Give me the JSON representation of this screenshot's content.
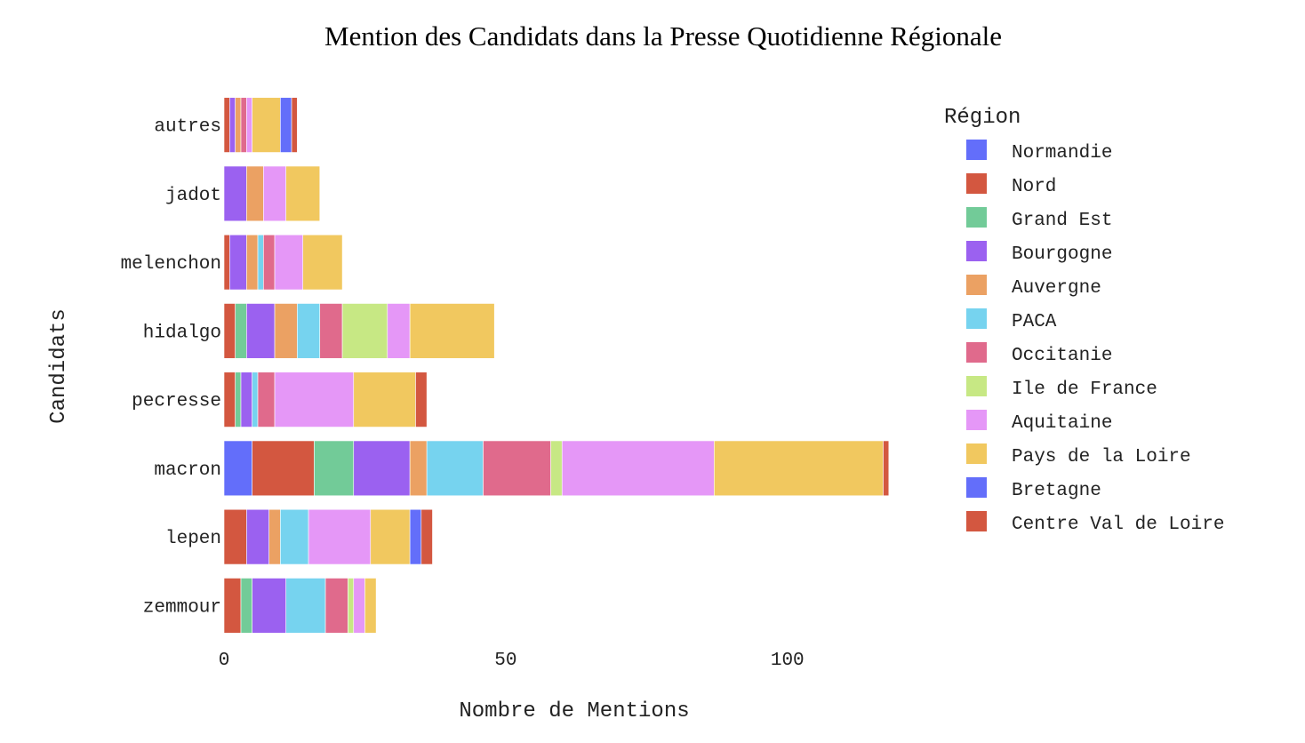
{
  "chart_data": {
    "type": "bar",
    "orientation": "horizontal",
    "stacked": true,
    "title": "Mention des Candidats dans la Presse Quotidienne Régionale",
    "xlabel": "Nombre de Mentions",
    "ylabel": "Candidats",
    "xlim": [
      0,
      118.5
    ],
    "xticks": [
      0,
      50,
      100
    ],
    "grid": false,
    "legend_title": "Région",
    "legend_position": "right",
    "categories": [
      "zemmour",
      "lepen",
      "macron",
      "pecresse",
      "hidalgo",
      "melenchon",
      "jadot",
      "autres"
    ],
    "segments": {
      "autres": [
        {
          "region": "Nord",
          "value": 1
        },
        {
          "region": "Bourgogne",
          "value": 1
        },
        {
          "region": "Auvergne",
          "value": 1
        },
        {
          "region": "Occitanie",
          "value": 1
        },
        {
          "region": "Aquitaine",
          "value": 1
        },
        {
          "region": "Pays de la Loire",
          "value": 5
        },
        {
          "region": "Bretagne",
          "value": 2
        },
        {
          "region": "Centre Val de Loire",
          "value": 1
        }
      ],
      "jadot": [
        {
          "region": "Bourgogne",
          "value": 4
        },
        {
          "region": "Auvergne",
          "value": 3
        },
        {
          "region": "Aquitaine",
          "value": 4
        },
        {
          "region": "Pays de la Loire",
          "value": 6
        }
      ],
      "melenchon": [
        {
          "region": "Nord",
          "value": 1
        },
        {
          "region": "Bourgogne",
          "value": 3
        },
        {
          "region": "Auvergne",
          "value": 2
        },
        {
          "region": "PACA",
          "value": 1
        },
        {
          "region": "Occitanie",
          "value": 2
        },
        {
          "region": "Aquitaine",
          "value": 5
        },
        {
          "region": "Pays de la Loire",
          "value": 7
        }
      ],
      "hidalgo": [
        {
          "region": "Nord",
          "value": 2
        },
        {
          "region": "Grand Est",
          "value": 2
        },
        {
          "region": "Bourgogne",
          "value": 5
        },
        {
          "region": "Auvergne",
          "value": 4
        },
        {
          "region": "PACA",
          "value": 4
        },
        {
          "region": "Occitanie",
          "value": 4
        },
        {
          "region": "Ile de France",
          "value": 8
        },
        {
          "region": "Aquitaine",
          "value": 4
        },
        {
          "region": "Pays de la Loire",
          "value": 15
        }
      ],
      "pecresse": [
        {
          "region": "Nord",
          "value": 2
        },
        {
          "region": "Grand Est",
          "value": 1
        },
        {
          "region": "Bourgogne",
          "value": 2
        },
        {
          "region": "PACA",
          "value": 1
        },
        {
          "region": "Occitanie",
          "value": 3
        },
        {
          "region": "Aquitaine",
          "value": 14
        },
        {
          "region": "Pays de la Loire",
          "value": 11
        },
        {
          "region": "Centre Val de Loire",
          "value": 2
        }
      ],
      "macron": [
        {
          "region": "Normandie",
          "value": 5
        },
        {
          "region": "Nord",
          "value": 11
        },
        {
          "region": "Grand Est",
          "value": 7
        },
        {
          "region": "Bourgogne",
          "value": 10
        },
        {
          "region": "Auvergne",
          "value": 3
        },
        {
          "region": "PACA",
          "value": 10
        },
        {
          "region": "Occitanie",
          "value": 12
        },
        {
          "region": "Ile de France",
          "value": 2
        },
        {
          "region": "Aquitaine",
          "value": 27
        },
        {
          "region": "Pays de la Loire",
          "value": 30
        },
        {
          "region": "Centre Val de Loire",
          "value": 1
        }
      ],
      "lepen": [
        {
          "region": "Nord",
          "value": 4
        },
        {
          "region": "Bourgogne",
          "value": 4
        },
        {
          "region": "Auvergne",
          "value": 2
        },
        {
          "region": "PACA",
          "value": 5
        },
        {
          "region": "Aquitaine",
          "value": 11
        },
        {
          "region": "Pays de la Loire",
          "value": 7
        },
        {
          "region": "Bretagne",
          "value": 2
        },
        {
          "region": "Centre Val de Loire",
          "value": 2
        }
      ],
      "zemmour": [
        {
          "region": "Nord",
          "value": 3
        },
        {
          "region": "Grand Est",
          "value": 2
        },
        {
          "region": "Bourgogne",
          "value": 6
        },
        {
          "region": "PACA",
          "value": 7
        },
        {
          "region": "Occitanie",
          "value": 4
        },
        {
          "region": "Ile de France",
          "value": 1
        },
        {
          "region": "Aquitaine",
          "value": 2
        },
        {
          "region": "Pays de la Loire",
          "value": 2
        }
      ]
    },
    "legend": [
      {
        "name": "Normandie",
        "color": "#636efa"
      },
      {
        "name": "Nord",
        "color": "#d35740"
      },
      {
        "name": "Grand Est",
        "color": "#72cb98"
      },
      {
        "name": "Bourgogne",
        "color": "#9b61f0"
      },
      {
        "name": "Auvergne",
        "color": "#eba163"
      },
      {
        "name": "PACA",
        "color": "#76d3ef"
      },
      {
        "name": "Occitanie",
        "color": "#e06a8c"
      },
      {
        "name": "Ile de France",
        "color": "#c7e884"
      },
      {
        "name": "Aquitaine",
        "color": "#e597f7"
      },
      {
        "name": "Pays de la Loire",
        "color": "#f1c85f"
      },
      {
        "name": "Bretagne",
        "color": "#636efa"
      },
      {
        "name": "Centre Val de Loire",
        "color": "#d35740"
      }
    ]
  }
}
